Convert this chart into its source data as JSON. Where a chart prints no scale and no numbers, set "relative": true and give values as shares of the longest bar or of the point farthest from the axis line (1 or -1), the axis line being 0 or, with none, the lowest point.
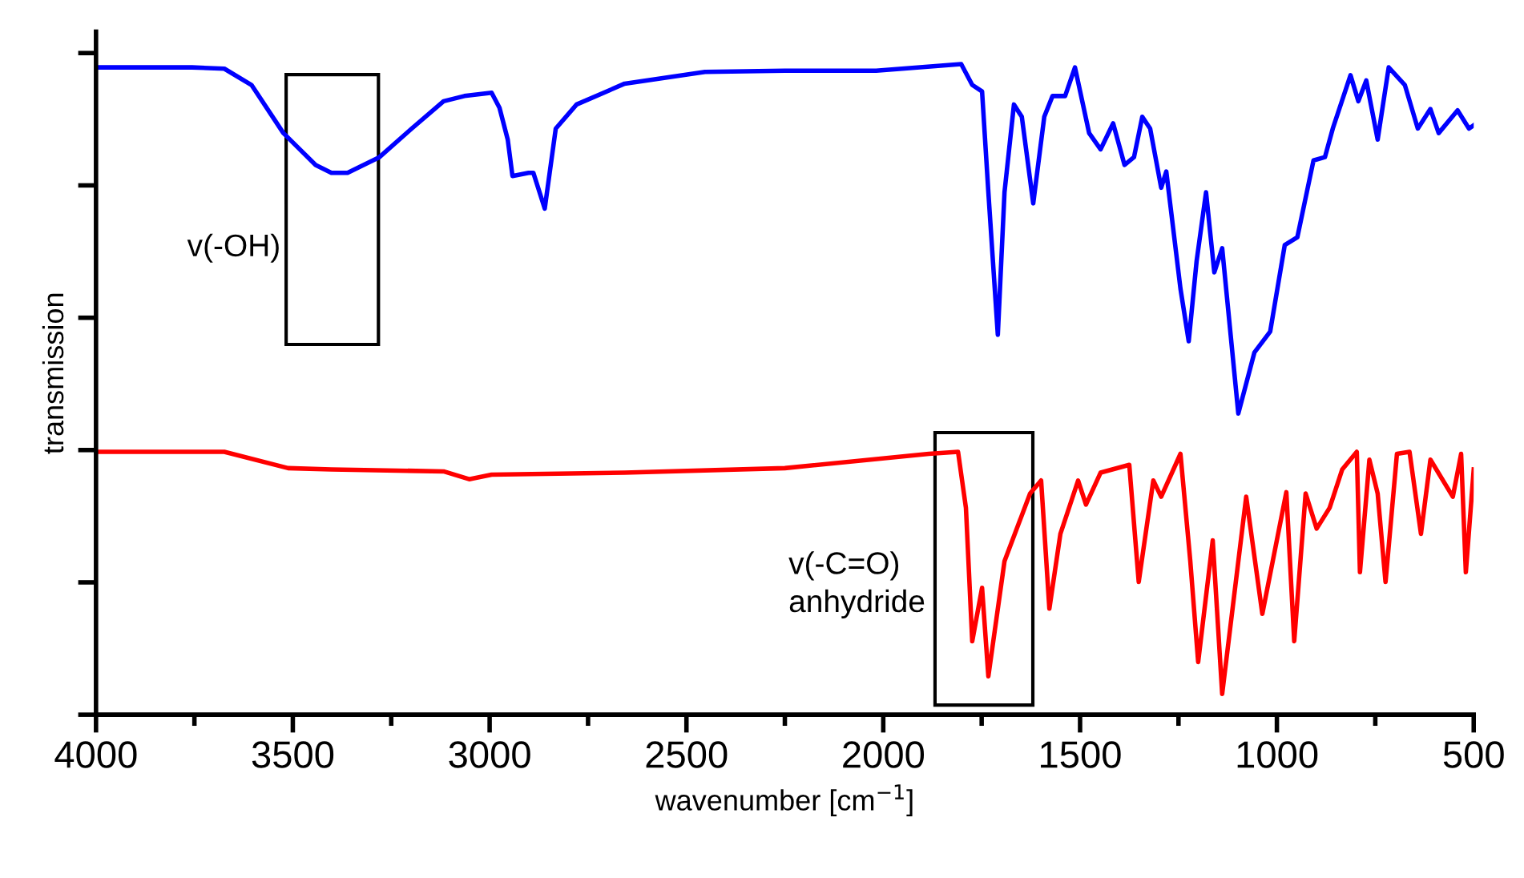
{
  "chart_data": {
    "type": "line",
    "relative": true,
    "xlabel": "wavenumber [cm$^{−1}$]",
    "ylabel": "transmission",
    "xlim": [
      4000,
      500
    ],
    "xticks": [
      4000,
      {
        "value": 3750,
        "label": null
      },
      3500,
      {
        "value": 3250,
        "label": null
      },
      3000,
      {
        "value": 2750,
        "label": null
      },
      2500,
      {
        "value": 2250,
        "label": null
      },
      2000,
      {
        "value": 1750,
        "label": null
      },
      1500,
      {
        "value": 1250,
        "label": null
      },
      1000,
      {
        "value": 750,
        "label": null
      },
      500
    ],
    "tick_labels": "x",
    "grid": false,
    "line_style": "solid",
    "marker": "none",
    "annotations": [
      "v(-OH)",
      "v(-C=O)\nanhydride"
    ],
    "series": [
      {
        "color": "#0000ff",
        "x": [
          4000,
          3756,
          3674,
          3605,
          3524,
          3442,
          3402,
          3361,
          3280,
          3198,
          3117,
          3064,
          2995,
          2975,
          2954,
          2942,
          2901,
          2889,
          2860,
          2832,
          2779,
          2657,
          2453,
          2250,
          2018,
          1802,
          1774,
          1749,
          1733,
          1709,
          1692,
          1668,
          1648,
          1619,
          1591,
          1570,
          1538,
          1513,
          1477,
          1448,
          1416,
          1387,
          1363,
          1342,
          1322,
          1294,
          1281,
          1245,
          1224,
          1204,
          1180,
          1159,
          1139,
          1098,
          1057,
          1017,
          980,
          948,
          907,
          878,
          858,
          813,
          793,
          773,
          744,
          716,
          675,
          642,
          610,
          589,
          541,
          512,
          500
        ],
        "values": [
          0.995,
          0.995,
          0.993,
          0.968,
          0.894,
          0.845,
          0.833,
          0.833,
          0.857,
          0.901,
          0.943,
          0.951,
          0.956,
          0.933,
          0.884,
          0.828,
          0.833,
          0.833,
          0.778,
          0.901,
          0.938,
          0.97,
          0.988,
          0.99,
          0.99,
          1,
          0.968,
          0.958,
          0.803,
          0.584,
          0.803,
          0.938,
          0.919,
          0.786,
          0.919,
          0.951,
          0.951,
          0.995,
          0.894,
          0.869,
          0.909,
          0.845,
          0.857,
          0.919,
          0.901,
          0.81,
          0.835,
          0.655,
          0.574,
          0.697,
          0.803,
          0.68,
          0.717,
          0.463,
          0.557,
          0.589,
          0.722,
          0.734,
          0.852,
          0.857,
          0.901,
          0.983,
          0.943,
          0.975,
          0.884,
          0.995,
          0.968,
          0.901,
          0.931,
          0.894,
          0.929,
          0.901,
          0.906
        ]
      },
      {
        "color": "#ff0000",
        "x": [
          4000,
          3674,
          3512,
          3402,
          3117,
          3052,
          2995,
          2657,
          2250,
          1884,
          1810,
          1790,
          1774,
          1749,
          1733,
          1692,
          1627,
          1599,
          1578,
          1550,
          1505,
          1485,
          1448,
          1375,
          1351,
          1314,
          1294,
          1245,
          1220,
          1200,
          1163,
          1139,
          1078,
          1037,
          976,
          956,
          927,
          899,
          866,
          834,
          797,
          789,
          765,
          744,
          724,
          695,
          663,
          634,
          610,
          553,
          532,
          520,
          500
        ],
        "values": [
          0.404,
          0.404,
          0.379,
          0.377,
          0.374,
          0.362,
          0.369,
          0.372,
          0.379,
          0.401,
          0.404,
          0.318,
          0.113,
          0.195,
          0.059,
          0.236,
          0.34,
          0.36,
          0.163,
          0.278,
          0.36,
          0.323,
          0.372,
          0.384,
          0.204,
          0.36,
          0.335,
          0.401,
          0.236,
          0.081,
          0.268,
          0.032,
          0.335,
          0.155,
          0.342,
          0.113,
          0.34,
          0.286,
          0.318,
          0.377,
          0.404,
          0.219,
          0.392,
          0.34,
          0.204,
          0.401,
          0.404,
          0.278,
          0.392,
          0.335,
          0.401,
          0.219,
          0.377
        ]
      }
    ]
  }
}
